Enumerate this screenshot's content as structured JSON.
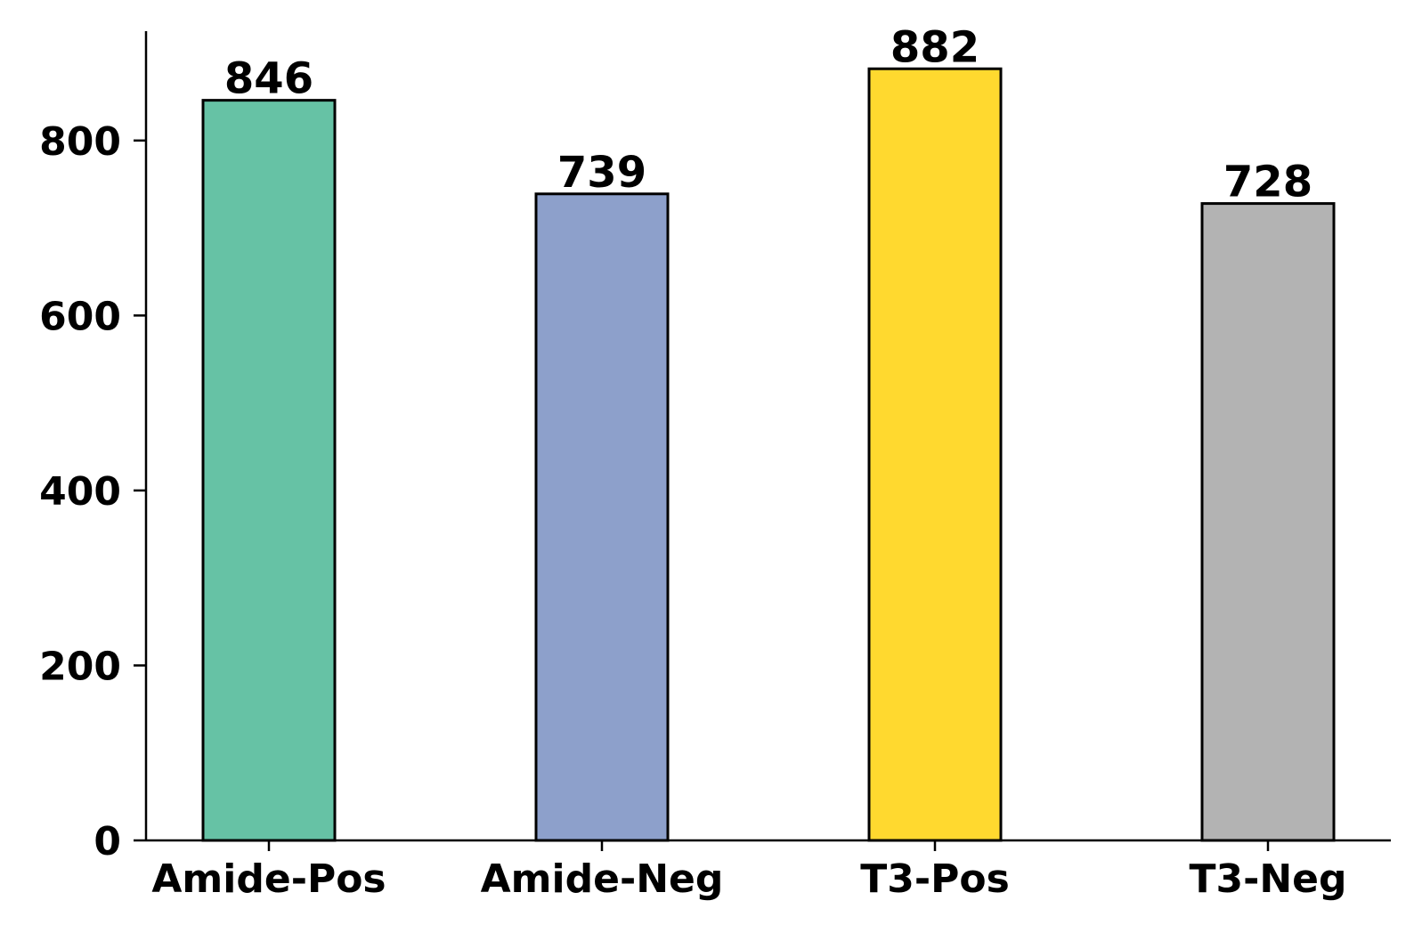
{
  "chart_data": {
    "type": "bar",
    "title": "",
    "xlabel": "",
    "ylabel": "",
    "categories": [
      "Amide-Pos",
      "Amide-Neg",
      "T3-Pos",
      "T3-Neg"
    ],
    "values": [
      846,
      739,
      882,
      728
    ],
    "value_labels": [
      "846",
      "739",
      "882",
      "728"
    ],
    "colors": [
      "#66c2a5",
      "#8da0cb",
      "#ffd92f",
      "#b3b3b3"
    ],
    "edge_color": "#000000",
    "ylim": [
      0,
      925
    ],
    "yticks": [
      0,
      200,
      400,
      600,
      800
    ],
    "ytick_labels": [
      "0",
      "200",
      "400",
      "600",
      "800"
    ],
    "grid": false,
    "legend": "none"
  }
}
